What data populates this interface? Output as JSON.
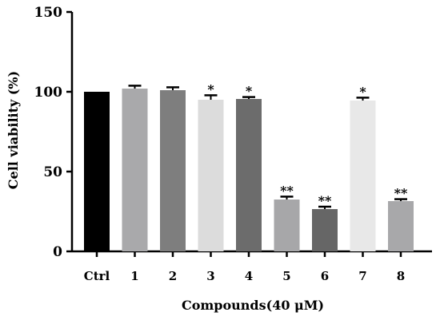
{
  "chart_data": {
    "type": "bar",
    "title": "",
    "xlabel": "Compounds(40 μM)",
    "ylabel": "Cell viability (%)",
    "ylim": [
      0,
      150
    ],
    "yticks": [
      0,
      50,
      100,
      150
    ],
    "grid": false,
    "categories": [
      "Ctrl",
      "1",
      "2",
      "3",
      "4",
      "5",
      "6",
      "7",
      "8"
    ],
    "values": [
      100,
      102,
      101,
      95,
      95.5,
      32.5,
      26.5,
      94.5,
      31.5
    ],
    "errors": [
      0,
      1.8,
      1.8,
      2.8,
      1.2,
      1.8,
      1.5,
      1.8,
      1.2
    ],
    "significance": [
      "",
      "",
      "",
      "*",
      "*",
      "**",
      "**",
      "*",
      "**"
    ],
    "colors": [
      "#000000",
      "#a9a9ab",
      "#7e7e7e",
      "#dcdcdc",
      "#6c6c6c",
      "#a7a7a9",
      "#666666",
      "#e8e8e8",
      "#a8a8aa"
    ]
  }
}
